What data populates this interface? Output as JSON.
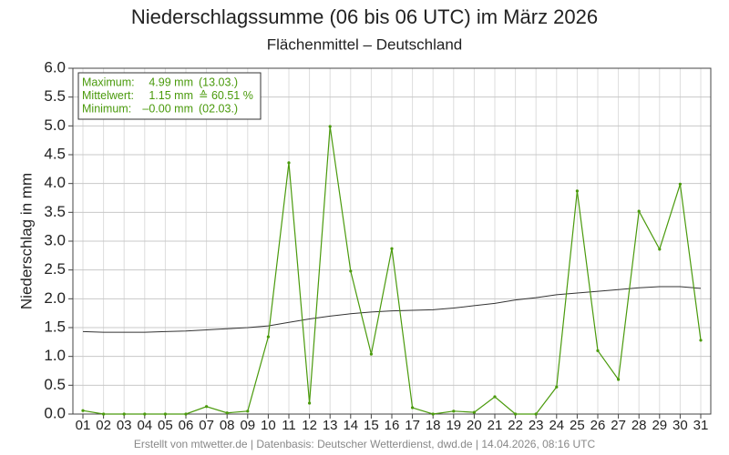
{
  "chart_data": {
    "type": "line",
    "title": "Niederschlagssumme (06 bis 06 UTC) im März 2026",
    "subtitle": "Flächenmittel – Deutschland",
    "y_label": "Niederschlag in mm",
    "footer": "Erstellt von mtwetter.de | Datenbasis: Deutscher Wetterdienst, dwd.de | 14.04.2026, 08:16 UTC",
    "categories": [
      "01",
      "02",
      "03",
      "04",
      "05",
      "06",
      "07",
      "08",
      "09",
      "10",
      "11",
      "12",
      "13",
      "14",
      "15",
      "16",
      "17",
      "18",
      "19",
      "20",
      "21",
      "22",
      "23",
      "24",
      "25",
      "26",
      "27",
      "28",
      "29",
      "30",
      "31"
    ],
    "series": [
      {
        "color": "#4a9a0c",
        "values": [
          0.06,
          0,
          0,
          0,
          0,
          0,
          0.13,
          0.02,
          0.05,
          1.34,
          4.36,
          0.19,
          4.99,
          2.48,
          1.04,
          2.87,
          0.11,
          0,
          0.05,
          0.03,
          0.3,
          0,
          0,
          0.47,
          3.87,
          1.1,
          0.6,
          3.52,
          2.86,
          3.99,
          1.28
        ]
      },
      {
        "color": "#333333",
        "values": [
          1.43,
          1.42,
          1.42,
          1.42,
          1.43,
          1.44,
          1.46,
          1.48,
          1.5,
          1.53,
          1.59,
          1.65,
          1.7,
          1.74,
          1.77,
          1.79,
          1.8,
          1.81,
          1.84,
          1.88,
          1.92,
          1.98,
          2.02,
          2.07,
          2.1,
          2.13,
          2.16,
          2.19,
          2.21,
          2.21,
          2.18
        ]
      }
    ],
    "ylim": [
      0,
      6
    ],
    "yticks": [
      {
        "value": 0,
        "label": "0.0"
      },
      0.5,
      {
        "value": 1,
        "label": "1.0"
      },
      1.5,
      {
        "value": 2,
        "label": "2.0"
      },
      2.5,
      {
        "value": 3,
        "label": "3.0"
      },
      3.5,
      {
        "value": 4,
        "label": "4.0"
      },
      4.5,
      {
        "value": 5,
        "label": "5.0"
      },
      5.5,
      {
        "value": 6,
        "label": "6.0"
      }
    ],
    "grid": true,
    "stats": [
      [
        "Maximum:",
        "4.99 mm",
        "(13.03.)"
      ],
      [
        "Mittelwert:",
        "1.15 mm",
        "≙ 60.51 %"
      ],
      [
        "Minimum:",
        "–0.00 mm",
        "(02.03.)"
      ]
    ]
  }
}
